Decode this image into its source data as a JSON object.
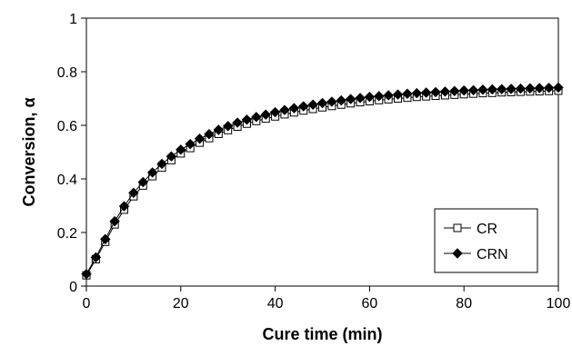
{
  "chart_data": {
    "type": "line",
    "xlabel": "Cure time (min)",
    "ylabel": "Conversion, α",
    "xlim": [
      0,
      100
    ],
    "ylim": [
      0,
      1
    ],
    "xticks": [
      0,
      20,
      40,
      60,
      80,
      100
    ],
    "yticks": [
      0,
      0.2,
      0.4,
      0.6,
      0.8,
      1
    ],
    "xtick_labels": [
      "0",
      "20",
      "40",
      "60",
      "80",
      "100"
    ],
    "ytick_labels": [
      "0",
      "0.2",
      "0.4",
      "0.6",
      "0.8",
      "1"
    ],
    "grid": false,
    "legend": "bottom-right",
    "x": [
      0,
      2,
      4,
      6,
      8,
      10,
      12,
      14,
      16,
      18,
      20,
      22,
      24,
      26,
      28,
      30,
      32,
      34,
      36,
      38,
      40,
      42,
      44,
      46,
      48,
      50,
      52,
      54,
      56,
      58,
      60,
      62,
      64,
      66,
      68,
      70,
      72,
      74,
      76,
      78,
      80,
      82,
      84,
      86,
      88,
      90,
      92,
      94,
      96,
      98,
      100
    ],
    "series": [
      {
        "name": "CR",
        "marker": "open-square",
        "color": "#000000",
        "values": [
          0.04,
          0.1,
          0.165,
          0.23,
          0.285,
          0.335,
          0.375,
          0.41,
          0.442,
          0.47,
          0.495,
          0.515,
          0.535,
          0.552,
          0.568,
          0.582,
          0.595,
          0.606,
          0.616,
          0.625,
          0.633,
          0.641,
          0.648,
          0.655,
          0.661,
          0.667,
          0.672,
          0.677,
          0.682,
          0.686,
          0.69,
          0.694,
          0.697,
          0.7,
          0.703,
          0.706,
          0.708,
          0.71,
          0.712,
          0.714,
          0.716,
          0.718,
          0.72,
          0.721,
          0.723,
          0.724,
          0.725,
          0.726,
          0.727,
          0.728,
          0.729
        ]
      },
      {
        "name": "CRN",
        "marker": "filled-diamond",
        "color": "#000000",
        "values": [
          0.045,
          0.107,
          0.175,
          0.242,
          0.298,
          0.348,
          0.388,
          0.424,
          0.456,
          0.484,
          0.509,
          0.53,
          0.55,
          0.567,
          0.583,
          0.597,
          0.61,
          0.621,
          0.631,
          0.64,
          0.649,
          0.657,
          0.664,
          0.671,
          0.677,
          0.683,
          0.688,
          0.693,
          0.698,
          0.702,
          0.706,
          0.709,
          0.712,
          0.715,
          0.718,
          0.72,
          0.722,
          0.724,
          0.726,
          0.728,
          0.73,
          0.731,
          0.733,
          0.734,
          0.735,
          0.736,
          0.737,
          0.738,
          0.739,
          0.74,
          0.741
        ]
      }
    ]
  }
}
